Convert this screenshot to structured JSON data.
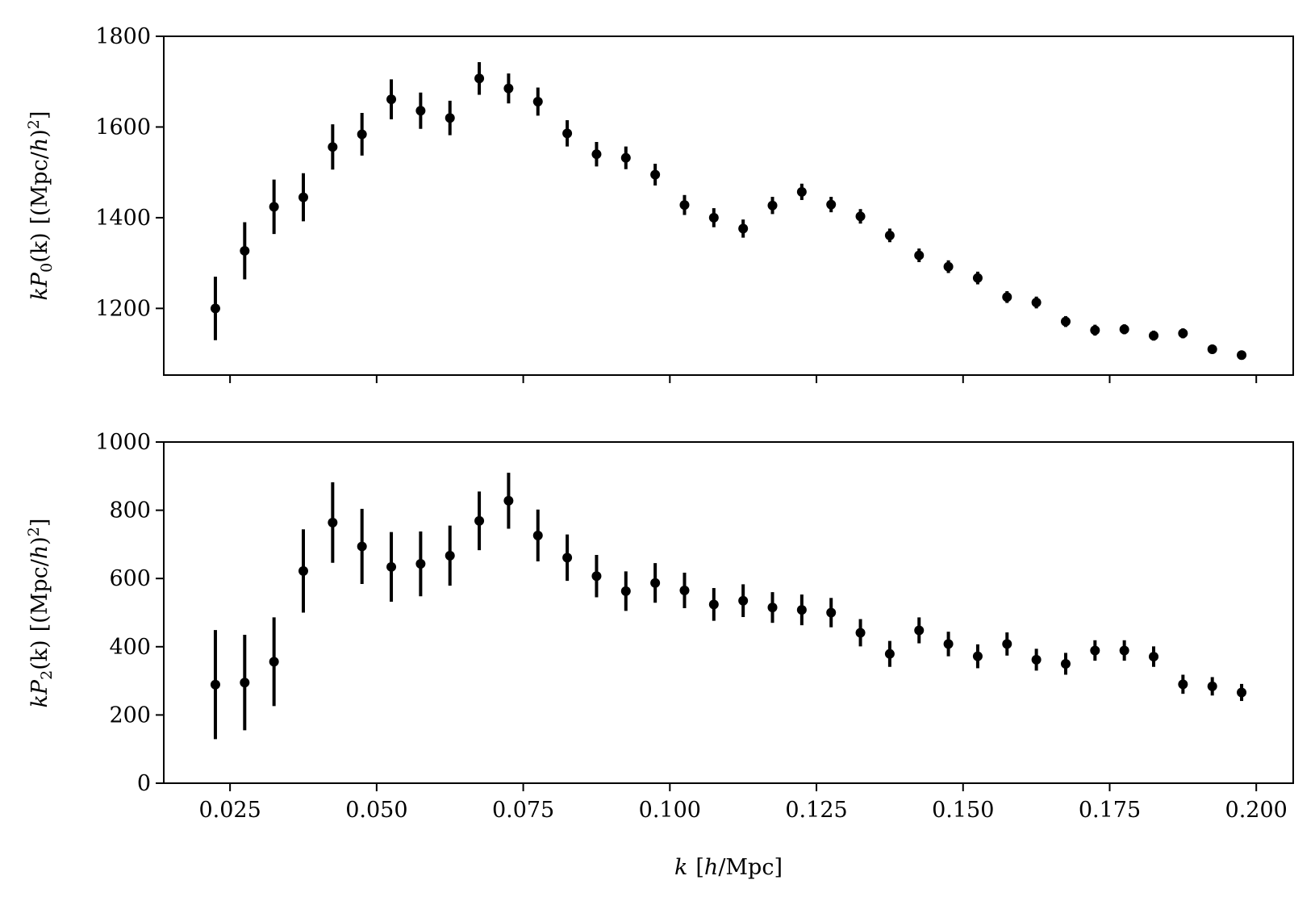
{
  "chart_data": [
    {
      "type": "scatter",
      "panel": "top",
      "ylabel": "kP_0(k) [(Mpc/h)^2]",
      "ylabel_parts": {
        "k": "k",
        "P": "P",
        "sub": "0",
        "arg": "(k)",
        "unit_open": "[(Mpc/",
        "unit_h": "h",
        "unit_close": ")",
        "sup": "2",
        "end": "]"
      },
      "xlim": [
        0.0137,
        0.2063
      ],
      "ylim": [
        1053,
        1800
      ],
      "yticks": [
        "1200",
        "1400",
        "1600",
        "1800"
      ],
      "yticks_values": [
        1200,
        1400,
        1600,
        1800
      ],
      "grid": false,
      "series": [
        {
          "x": [
            0.0225,
            0.0275,
            0.0325,
            0.0375,
            0.0425,
            0.0475,
            0.0525,
            0.0575,
            0.0625,
            0.0675,
            0.0725,
            0.0775,
            0.0825,
            0.0875,
            0.0925,
            0.0975,
            0.1025,
            0.1075,
            0.1125,
            0.1175,
            0.1225,
            0.1275,
            0.1325,
            0.1375,
            0.1425,
            0.1475,
            0.1525,
            0.1575,
            0.1625,
            0.1675,
            0.1725,
            0.1775,
            0.1825,
            0.1875,
            0.1925,
            0.1975
          ],
          "y": [
            1200,
            1327,
            1424,
            1445,
            1556,
            1584,
            1661,
            1636,
            1620,
            1707,
            1685,
            1656,
            1586,
            1540,
            1532,
            1495,
            1428,
            1400,
            1376,
            1427,
            1457,
            1429,
            1403,
            1361,
            1317,
            1292,
            1267,
            1225,
            1213,
            1171,
            1152,
            1154,
            1140,
            1145,
            1110,
            1097
          ],
          "yerr": [
            70,
            63,
            60,
            53,
            50,
            47,
            44,
            40,
            38,
            36,
            33,
            31,
            29,
            27,
            25,
            24,
            22,
            21,
            20,
            19,
            18,
            17,
            16,
            15,
            15,
            14,
            14,
            13,
            13,
            12,
            12,
            11,
            11,
            11,
            10,
            10
          ]
        }
      ]
    },
    {
      "type": "scatter",
      "panel": "bottom",
      "xlabel": "k [h/Mpc]",
      "xlabel_parts": {
        "k": "k",
        "open": "[",
        "h": "h",
        "rest": "/Mpc]"
      },
      "ylabel": "kP_2(k) [(Mpc/h)^2]",
      "ylabel_parts": {
        "k": "k",
        "P": "P",
        "sub": "2",
        "arg": "(k)",
        "unit_open": "[(Mpc/",
        "unit_h": "h",
        "unit_close": ")",
        "sup": "2",
        "end": "]"
      },
      "xlim": [
        0.0137,
        0.2063
      ],
      "ylim": [
        0,
        1000
      ],
      "xticks": [
        "0.025",
        "0.050",
        "0.075",
        "0.100",
        "0.125",
        "0.150",
        "0.175",
        "0.200"
      ],
      "xticks_values": [
        0.025,
        0.05,
        0.075,
        0.1,
        0.125,
        0.15,
        0.175,
        0.2
      ],
      "yticks": [
        "0",
        "200",
        "400",
        "600",
        "800",
        "1000"
      ],
      "yticks_values": [
        0,
        200,
        400,
        600,
        800,
        1000
      ],
      "grid": false,
      "series": [
        {
          "x": [
            0.0225,
            0.0275,
            0.0325,
            0.0375,
            0.0425,
            0.0475,
            0.0525,
            0.0575,
            0.0625,
            0.0675,
            0.0725,
            0.0775,
            0.0825,
            0.0875,
            0.0925,
            0.0975,
            0.1025,
            0.1075,
            0.1125,
            0.1175,
            0.1225,
            0.1275,
            0.1325,
            0.1375,
            0.1425,
            0.1475,
            0.1525,
            0.1575,
            0.1625,
            0.1675,
            0.1725,
            0.1775,
            0.1825,
            0.1875,
            0.1925,
            0.1975
          ],
          "y": [
            289,
            295,
            356,
            622,
            764,
            694,
            634,
            643,
            667,
            769,
            828,
            726,
            661,
            607,
            563,
            587,
            565,
            524,
            535,
            515,
            508,
            500,
            441,
            379,
            448,
            408,
            372,
            408,
            362,
            350,
            389,
            389,
            371,
            290,
            284,
            266
          ],
          "yerr": [
            160,
            140,
            130,
            122,
            118,
            110,
            102,
            95,
            88,
            86,
            82,
            76,
            68,
            62,
            58,
            58,
            52,
            48,
            48,
            45,
            45,
            43,
            40,
            38,
            38,
            36,
            35,
            34,
            32,
            32,
            30,
            30,
            30,
            28,
            27,
            25
          ]
        }
      ]
    }
  ]
}
